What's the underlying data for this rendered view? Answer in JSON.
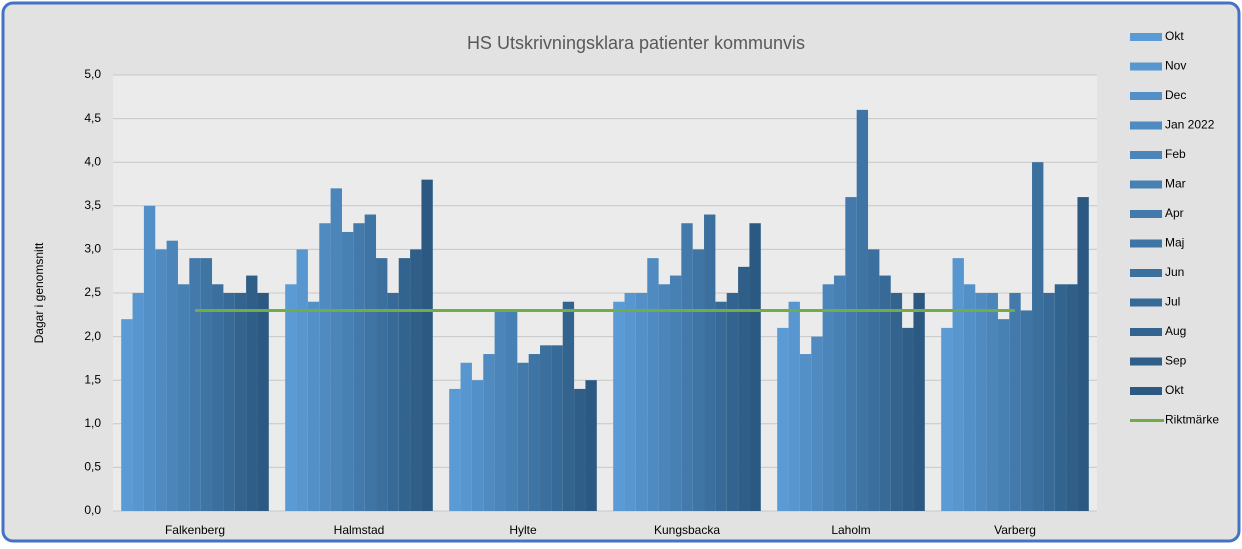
{
  "chart_data": {
    "type": "bar",
    "title": "HS Utskrivningsklara patienter kommunvis",
    "y_label": "Dagar i genomsnitt",
    "categories": [
      "Falkenberg",
      "Halmstad",
      "Hylte",
      "Kungsbacka",
      "Laholm",
      "Varberg"
    ],
    "series": [
      {
        "name": "Okt",
        "color": "#5b9bd5",
        "values": [
          2.2,
          2.6,
          1.4,
          2.4,
          2.1,
          2.1
        ]
      },
      {
        "name": "Nov",
        "color": "#5796ce",
        "values": [
          2.5,
          3.0,
          1.7,
          2.5,
          2.4,
          2.9
        ]
      },
      {
        "name": "Dec",
        "color": "#5390c7",
        "values": [
          3.5,
          2.4,
          1.5,
          2.5,
          1.8,
          2.6
        ]
      },
      {
        "name": "Jan 2022",
        "color": "#4f8bc0",
        "values": [
          3.0,
          3.3,
          1.8,
          2.9,
          2.0,
          2.5
        ]
      },
      {
        "name": "Feb",
        "color": "#4b85b9",
        "values": [
          3.1,
          3.7,
          2.3,
          2.6,
          2.6,
          2.5
        ]
      },
      {
        "name": "Mar",
        "color": "#4780b2",
        "values": [
          2.6,
          3.2,
          2.3,
          2.7,
          2.7,
          2.2
        ]
      },
      {
        "name": "Apr",
        "color": "#437aab",
        "values": [
          2.9,
          3.3,
          1.7,
          3.3,
          3.6,
          2.5
        ]
      },
      {
        "name": "Maj",
        "color": "#3f75a4",
        "values": [
          2.9,
          3.4,
          1.8,
          3.0,
          4.6,
          2.3
        ]
      },
      {
        "name": "Jun",
        "color": "#3b6f9d",
        "values": [
          2.6,
          2.9,
          1.9,
          3.4,
          3.0,
          4.0
        ]
      },
      {
        "name": "Jul",
        "color": "#376a96",
        "values": [
          2.5,
          2.5,
          1.9,
          2.4,
          2.7,
          2.5
        ]
      },
      {
        "name": "Aug",
        "color": "#33648f",
        "values": [
          2.5,
          2.9,
          2.4,
          2.5,
          2.5,
          2.6
        ]
      },
      {
        "name": "Sep",
        "color": "#2f5f88",
        "values": [
          2.7,
          3.0,
          1.4,
          2.8,
          2.1,
          2.6
        ]
      },
      {
        "name": "Okt",
        "color": "#2b5981",
        "values": [
          2.5,
          3.8,
          1.5,
          3.3,
          2.5,
          3.6
        ]
      },
      {
        "name": "Riktmärke",
        "type": "line",
        "color": "#70ad47",
        "values": [
          2.3,
          2.3,
          2.3,
          2.3,
          2.3,
          2.3
        ]
      }
    ],
    "ylim": [
      0,
      5
    ],
    "yticks": [
      {
        "value": 0,
        "label": "0,0"
      },
      {
        "value": 0.5,
        "label": "0,5"
      },
      {
        "value": 1,
        "label": "1,0"
      },
      {
        "value": 1.5,
        "label": "1,5"
      },
      {
        "value": 2,
        "label": "2,0"
      },
      {
        "value": 2.5,
        "label": "2,5"
      },
      {
        "value": 3,
        "label": "3,0"
      },
      {
        "value": 3.5,
        "label": "3,5"
      },
      {
        "value": 4,
        "label": "4,0"
      },
      {
        "value": 4.5,
        "label": "4,5"
      },
      {
        "value": 5,
        "label": "5,0"
      }
    ],
    "grid": true,
    "legend": "right"
  }
}
